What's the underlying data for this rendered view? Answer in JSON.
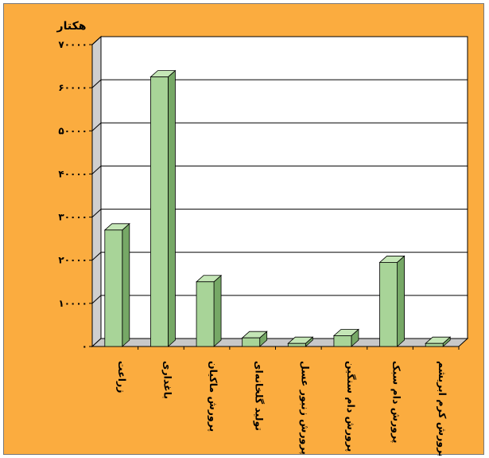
{
  "chart_data": {
    "type": "bar",
    "title": "",
    "ylabel": "هکتار",
    "xlabel": "",
    "ylim": [
      0,
      70000
    ],
    "yticks": [
      0,
      10000,
      20000,
      30000,
      40000,
      50000,
      60000,
      70000
    ],
    "ytick_labels": [
      "۰",
      "۱۰۰۰۰",
      "۲۰۰۰۰",
      "۳۰۰۰۰",
      "۴۰۰۰۰",
      "۵۰۰۰۰",
      "۶۰۰۰۰",
      "۷۰۰۰۰"
    ],
    "grid": true,
    "legend": "none",
    "categories": [
      "زراعت",
      "باغداری",
      "پرورش ماکیان",
      "تولید گلخانه‌ای",
      "پرورش زنبور عسل",
      "پرورش دام سنگین",
      "پرورش دام سبک",
      "پرورش کرم ابریشم"
    ],
    "values": [
      27000,
      62500,
      15000,
      2000,
      700,
      2500,
      19500,
      700
    ],
    "colors": {
      "background": "#fbac3f",
      "plot_wall": "#ffffff",
      "side_wall": "#cfcfcf",
      "floor": "#c8c8c8",
      "bar_front": "#a8d498",
      "bar_side": "#76a866",
      "bar_top": "#c4e6b6",
      "grid": "#000000"
    }
  }
}
